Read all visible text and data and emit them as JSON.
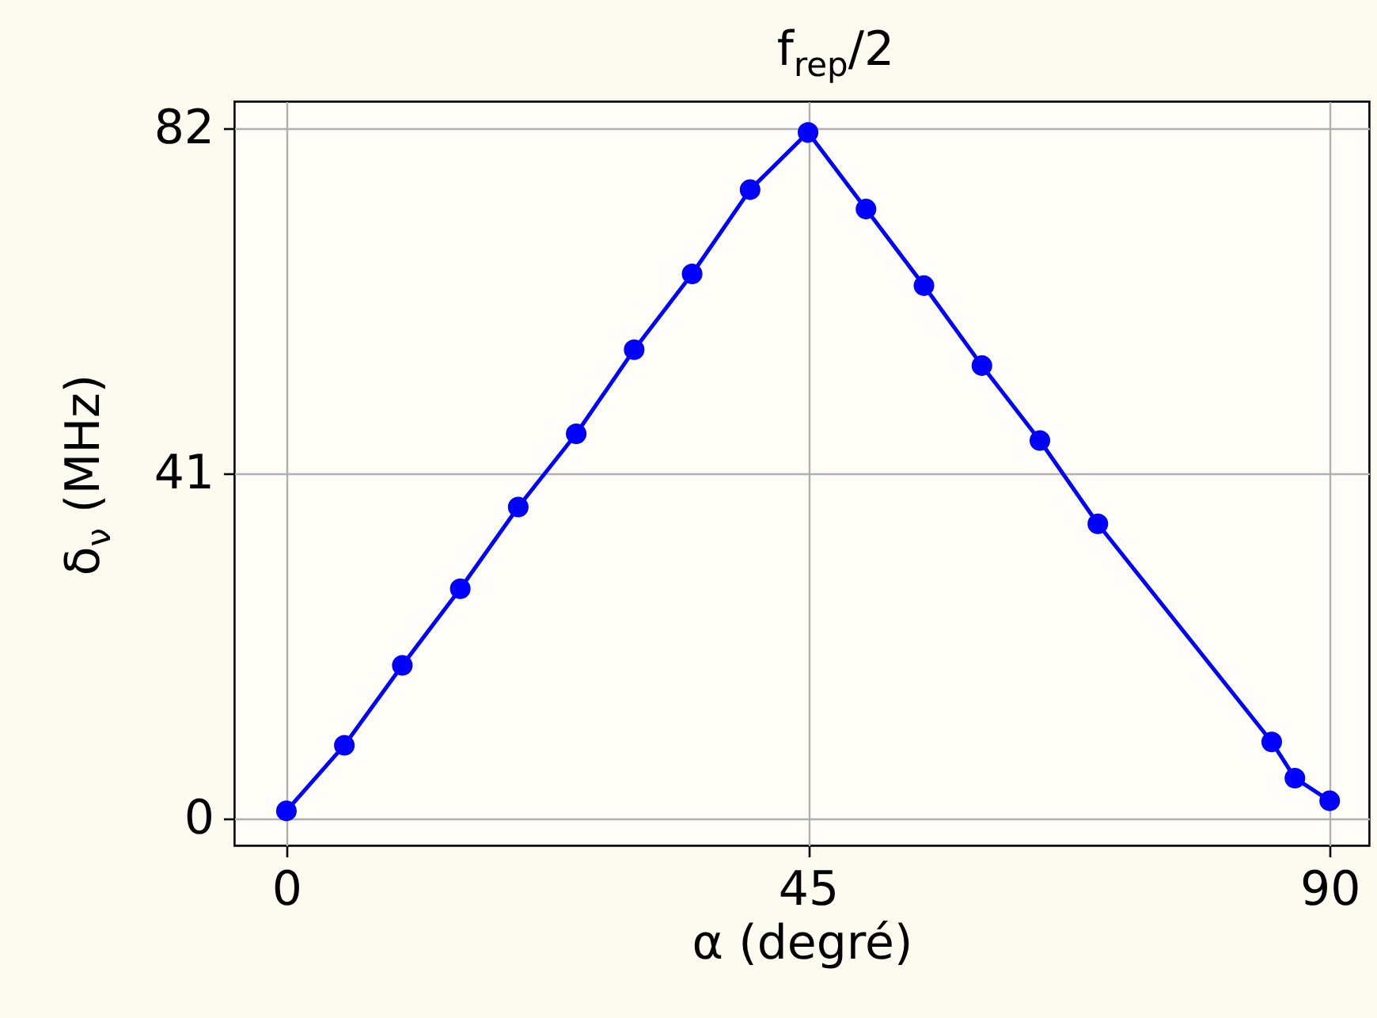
{
  "chart_data": {
    "type": "line",
    "title": "f$_{rep}$/2",
    "xlabel": "α (degré)",
    "ylabel": "δ$_{ν}$ (MHz)",
    "x": [
      0,
      5,
      10,
      15,
      20,
      25,
      30,
      35,
      40,
      45,
      50,
      55,
      60,
      65,
      70,
      85,
      87,
      90
    ],
    "series": [
      {
        "color": "#0000ff",
        "values": [
          0.9,
          8.7,
          18.2,
          27.3,
          37.0,
          45.7,
          55.7,
          64.7,
          74.7,
          81.5,
          72.4,
          63.3,
          53.8,
          44.9,
          35.0,
          9.1,
          4.8,
          2.1
        ]
      }
    ],
    "xlim": [
      -4.5,
      93.4
    ],
    "ylim": [
      -3.2,
      85.2
    ],
    "xticks": [
      0,
      45,
      90
    ],
    "yticks": [
      0,
      41,
      82
    ],
    "grid": true,
    "marker": "circle",
    "line_style": "solid"
  }
}
